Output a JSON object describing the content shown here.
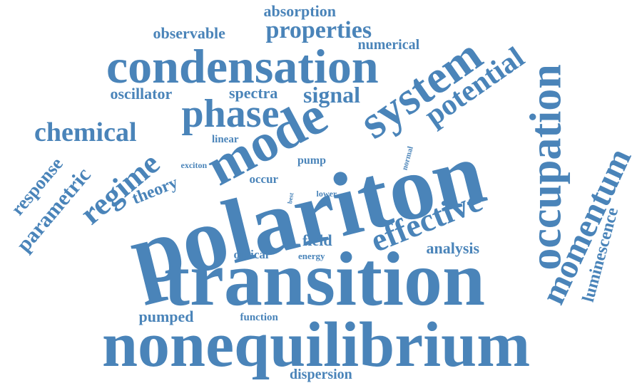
{
  "color": "#4a84b9",
  "words": {
    "polariton": "polariton",
    "transition": "transition",
    "nonequilibrium": "nonequilibrium",
    "condensation": "condensation",
    "system": "system",
    "mode": "mode",
    "occupation": "occupation",
    "momentum": "momentum",
    "phase": "phase",
    "effective": "effective",
    "potential": "potential",
    "regime": "regime",
    "chemical": "chemical",
    "properties": "properties",
    "signal": "signal",
    "parametric": "parametric",
    "response": "response",
    "luminescence": "luminescence",
    "observable": "observable",
    "absorption": "absorption",
    "numerical": "numerical",
    "oscillator": "oscillator",
    "spectra": "spectra",
    "theory": "theory",
    "field": "field",
    "analysis": "analysis",
    "pumped": "pumped",
    "dispersion": "dispersion",
    "optical": "optical",
    "energy": "energy",
    "function": "function",
    "linear": "linear",
    "exciton": "exciton",
    "pump": "pump",
    "occur": "occur",
    "lower": "lower",
    "normal": "normal",
    "best": "best"
  }
}
